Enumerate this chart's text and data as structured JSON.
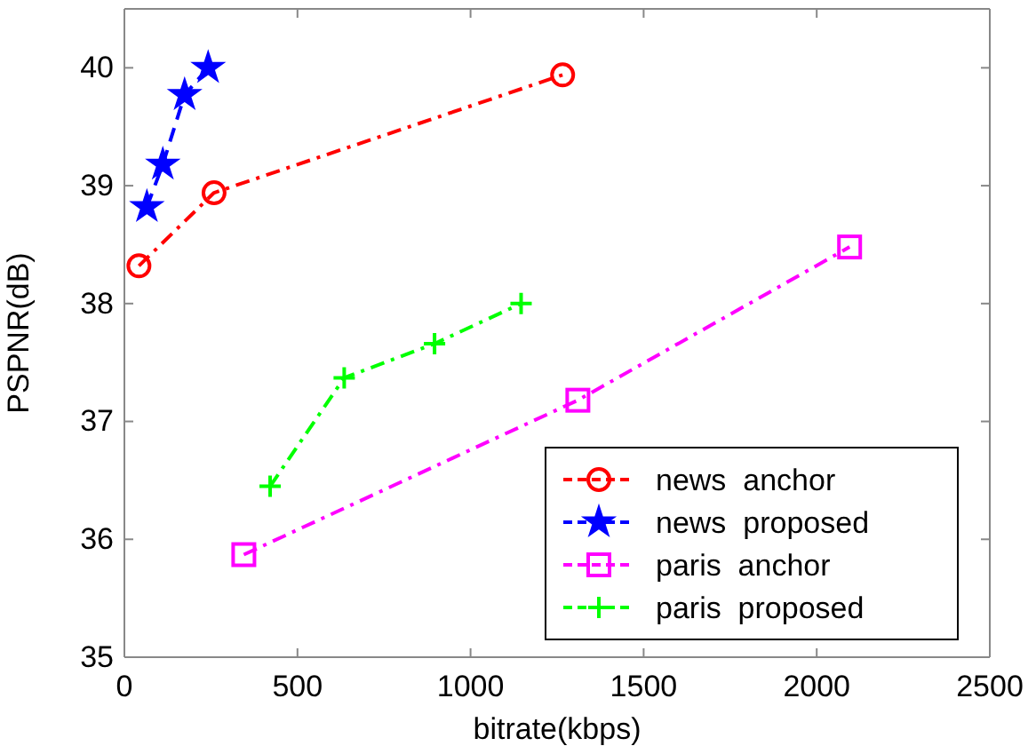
{
  "chart_data": {
    "type": "line",
    "xlabel": "bitrate(kbps)",
    "ylabel": "PSPNR(dB)",
    "xlim": [
      0,
      2500
    ],
    "xticks": [
      0,
      500,
      1000,
      1500,
      2000,
      2500
    ],
    "ylim": [
      35,
      40.5
    ],
    "yticks": [
      35,
      36,
      37,
      38,
      39,
      40
    ],
    "grid": false,
    "legend": "bottom right",
    "series": [
      {
        "name": "news  anchor",
        "color": "#ff0000",
        "marker": "circle",
        "line_style": "dashdot",
        "x": [
          42,
          259,
          1266
        ],
        "values": [
          38.32,
          38.94,
          39.94
        ]
      },
      {
        "name": "news  proposed",
        "color": "#0000ff",
        "marker": "star",
        "line_style": "dashed",
        "x": [
          65,
          111,
          174,
          242
        ],
        "values": [
          38.82,
          39.18,
          39.77,
          40.0
        ]
      },
      {
        "name": "paris  anchor",
        "color": "#ff00ff",
        "marker": "square",
        "line_style": "dashdot",
        "x": [
          345,
          1310,
          2095
        ],
        "values": [
          35.87,
          37.18,
          38.48
        ]
      },
      {
        "name": "paris  proposed",
        "color": "#00ff00",
        "marker": "cross",
        "line_style": "dashdot",
        "x": [
          421,
          635,
          896,
          1146
        ],
        "values": [
          36.45,
          37.37,
          37.66,
          38.0
        ]
      }
    ]
  }
}
